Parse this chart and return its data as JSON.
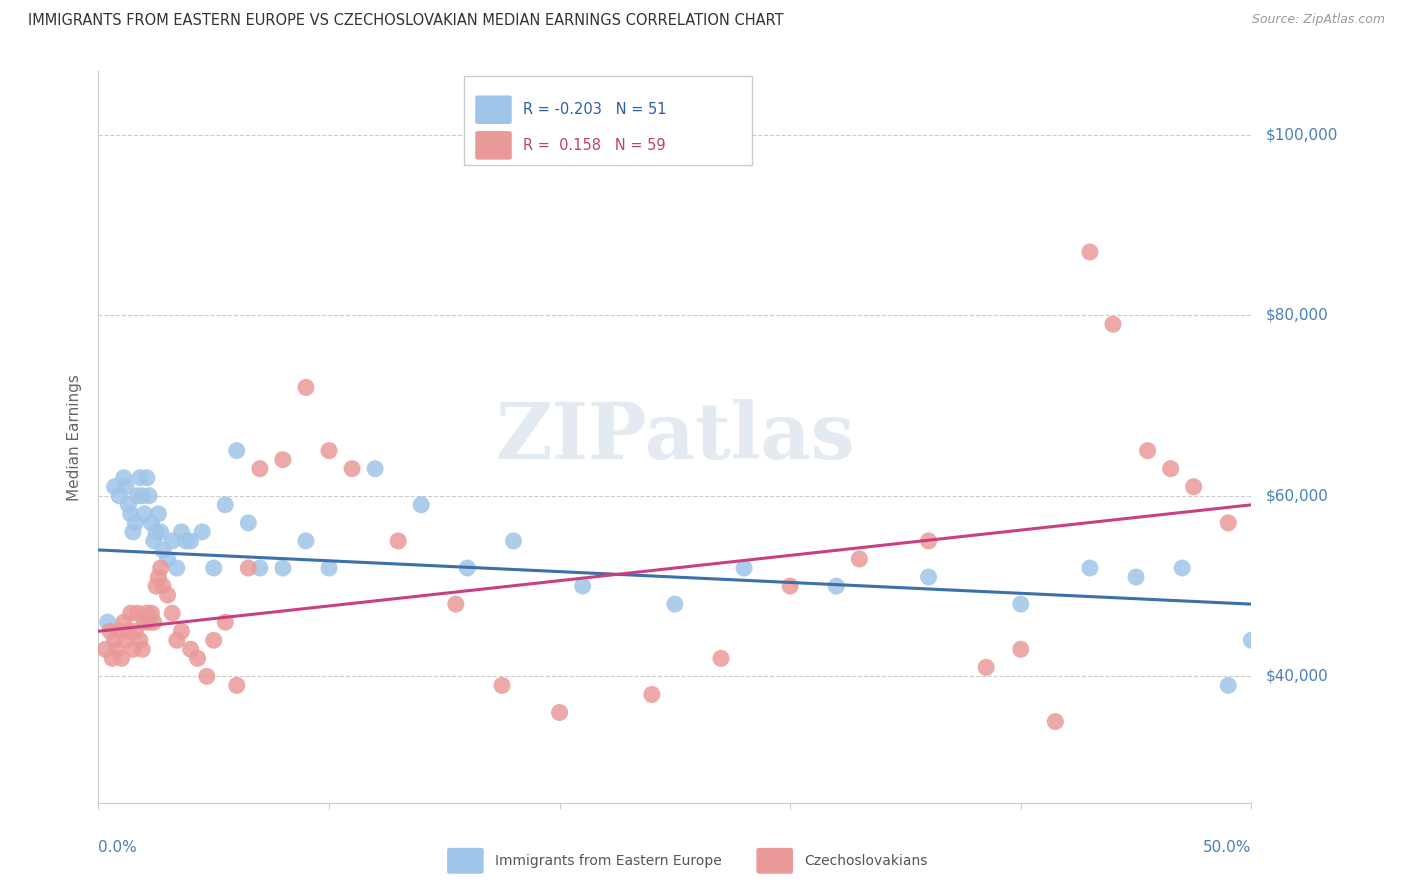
{
  "title": "IMMIGRANTS FROM EASTERN EUROPE VS CZECHOSLOVAKIAN MEDIAN EARNINGS CORRELATION CHART",
  "source": "Source: ZipAtlas.com",
  "ylabel": "Median Earnings",
  "yticks": [
    40000,
    60000,
    80000,
    100000
  ],
  "ytick_labels": [
    "$40,000",
    "$60,000",
    "$80,000",
    "$100,000"
  ],
  "xlim": [
    0.0,
    0.5
  ],
  "ylim": [
    26000,
    107000
  ],
  "blue_r": "-0.203",
  "blue_n": "51",
  "pink_r": "0.158",
  "pink_n": "59",
  "blue_color": "#9fc5e8",
  "pink_color": "#ea9999",
  "blue_line_color": "#3d6fa8",
  "pink_line_color": "#c94080",
  "legend_label_blue": "Immigrants from Eastern Europe",
  "legend_label_pink": "Czechoslovakians",
  "watermark": "ZIPatlas",
  "blue_scatter_x": [
    0.004,
    0.007,
    0.009,
    0.011,
    0.012,
    0.013,
    0.014,
    0.015,
    0.016,
    0.017,
    0.018,
    0.019,
    0.02,
    0.021,
    0.022,
    0.023,
    0.024,
    0.025,
    0.026,
    0.027,
    0.028,
    0.03,
    0.032,
    0.034,
    0.036,
    0.038,
    0.04,
    0.045,
    0.05,
    0.055,
    0.06,
    0.065,
    0.07,
    0.08,
    0.09,
    0.1,
    0.12,
    0.14,
    0.16,
    0.18,
    0.21,
    0.25,
    0.28,
    0.32,
    0.36,
    0.4,
    0.43,
    0.45,
    0.47,
    0.49,
    0.5
  ],
  "blue_scatter_y": [
    46000,
    61000,
    60000,
    62000,
    61000,
    59000,
    58000,
    56000,
    57000,
    60000,
    62000,
    60000,
    58000,
    62000,
    60000,
    57000,
    55000,
    56000,
    58000,
    56000,
    54000,
    53000,
    55000,
    52000,
    56000,
    55000,
    55000,
    56000,
    52000,
    59000,
    65000,
    57000,
    52000,
    52000,
    55000,
    52000,
    63000,
    59000,
    52000,
    55000,
    50000,
    48000,
    52000,
    50000,
    51000,
    48000,
    52000,
    51000,
    52000,
    39000,
    44000
  ],
  "pink_scatter_x": [
    0.003,
    0.005,
    0.006,
    0.007,
    0.008,
    0.009,
    0.01,
    0.011,
    0.012,
    0.013,
    0.014,
    0.015,
    0.016,
    0.017,
    0.018,
    0.019,
    0.02,
    0.021,
    0.022,
    0.023,
    0.024,
    0.025,
    0.026,
    0.027,
    0.028,
    0.03,
    0.032,
    0.034,
    0.036,
    0.04,
    0.043,
    0.047,
    0.05,
    0.055,
    0.06,
    0.065,
    0.07,
    0.08,
    0.09,
    0.1,
    0.11,
    0.13,
    0.155,
    0.175,
    0.2,
    0.24,
    0.27,
    0.3,
    0.33,
    0.36,
    0.385,
    0.4,
    0.415,
    0.43,
    0.44,
    0.455,
    0.465,
    0.475,
    0.49
  ],
  "pink_scatter_y": [
    43000,
    45000,
    42000,
    44000,
    43000,
    45000,
    42000,
    46000,
    44000,
    45000,
    47000,
    43000,
    45000,
    47000,
    44000,
    43000,
    46000,
    47000,
    46000,
    47000,
    46000,
    50000,
    51000,
    52000,
    50000,
    49000,
    47000,
    44000,
    45000,
    43000,
    42000,
    40000,
    44000,
    46000,
    39000,
    52000,
    63000,
    64000,
    72000,
    65000,
    63000,
    55000,
    48000,
    39000,
    36000,
    38000,
    42000,
    50000,
    53000,
    55000,
    41000,
    43000,
    35000,
    87000,
    79000,
    65000,
    63000,
    61000,
    57000
  ]
}
